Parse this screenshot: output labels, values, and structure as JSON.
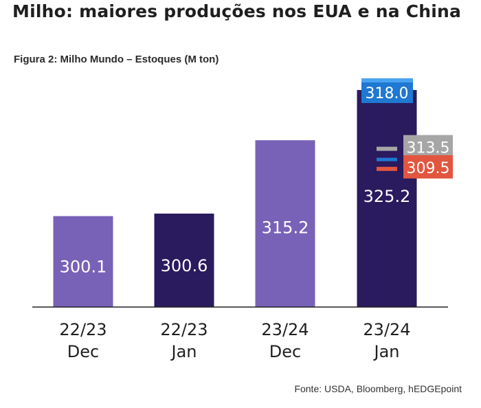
{
  "header": {
    "title": "Milho: maiores produções nos EUA e na China"
  },
  "chart_data": {
    "type": "bar",
    "title": "Figura 2: Milho Mundo – Estoques (M ton)",
    "categories": [
      [
        "22/23",
        "Dec"
      ],
      [
        "22/23",
        "Jan"
      ],
      [
        "23/24",
        "Dec"
      ],
      [
        "23/24",
        "Jan"
      ]
    ],
    "values": [
      300.1,
      300.6,
      315.2,
      325.2
    ],
    "value_labels": [
      "300.1",
      "300.6",
      "315.2",
      "325.2"
    ],
    "ylim": [
      282.0,
      326.3
    ],
    "grid": false,
    "bar_colors": [
      "#7862b7",
      "#2a1a5e",
      "#7862b7",
      "#2a1a5e"
    ],
    "estimates": {
      "category_index": 3,
      "items": [
        {
          "value": 318.0,
          "label": "318.0",
          "color": "#1f78d1"
        },
        {
          "value": 313.5,
          "label": "313.5",
          "color": "#a6a6a6"
        },
        {
          "value": 309.5,
          "label": "309.5",
          "color": "#e2553e"
        }
      ]
    }
  },
  "footer": {
    "source": "Fonte: USDA, Bloomberg, hEDGEpoint"
  }
}
